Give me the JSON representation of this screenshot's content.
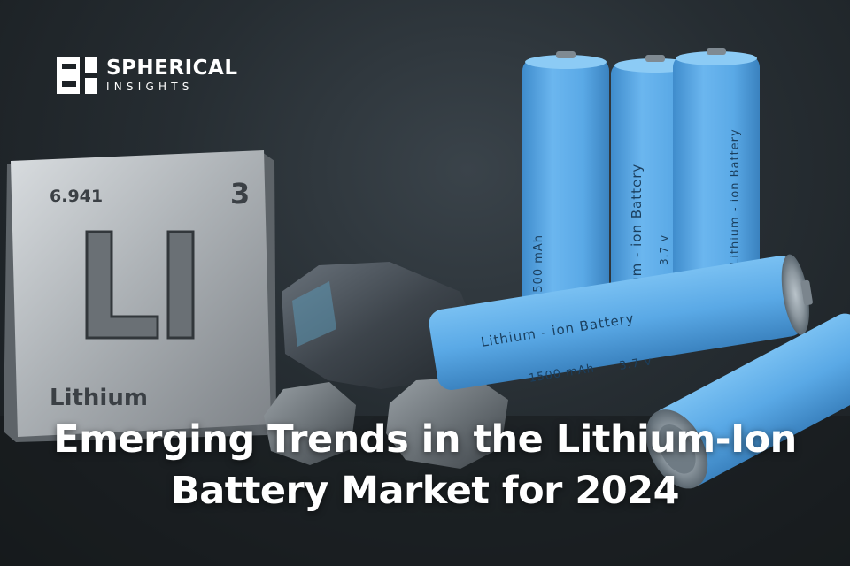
{
  "brand": {
    "name": "SPHERICAL",
    "tagline": "INSIGHTS",
    "logo_icon": "spherical-insights-logo-icon"
  },
  "element_tile": {
    "atomic_mass": "6.941",
    "atomic_number": "3",
    "symbol": "Li",
    "name": "Lithium"
  },
  "battery_labels": {
    "title": "Lithium - ion Battery",
    "capacity": "1500 mAh",
    "voltage": "3.7 v"
  },
  "headline": {
    "line1": "Emerging Trends in the Lithium-Ion",
    "line2": "Battery Market for 2024"
  },
  "colors": {
    "battery_blue": "#5aa9e6",
    "tile_silver": "#b9bec2",
    "text_white": "#ffffff"
  }
}
